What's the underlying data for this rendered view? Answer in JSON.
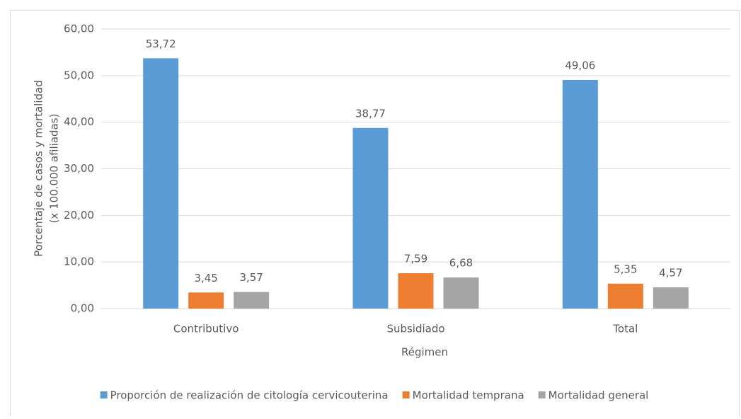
{
  "chart_data": {
    "type": "bar",
    "ylabel": [
      "Porcentaje de casos y mortalidad",
      "(x 100.000 afiliadas)"
    ],
    "xlabel": "Régimen",
    "categories": [
      "Contributivo",
      "Subsidiado",
      "Total"
    ],
    "series": [
      {
        "name": "Proporción de realización de citología cervicouterina",
        "color": "#5b9bd5",
        "values": [
          53.72,
          38.77,
          49.06
        ],
        "value_labels": [
          "53,72",
          "38,77",
          "49,06"
        ]
      },
      {
        "name": "Mortalidad temprana",
        "color": "#ed7d31",
        "values": [
          3.45,
          7.59,
          5.35
        ],
        "value_labels": [
          "3,45",
          "7,59",
          "5,35"
        ]
      },
      {
        "name": "Mortalidad general",
        "color": "#a5a5a5",
        "values": [
          3.57,
          6.68,
          4.57
        ],
        "value_labels": [
          "3,57",
          "6,68",
          "4,57"
        ]
      }
    ],
    "ylim": [
      0,
      60
    ],
    "yticks": [
      {
        "value": 0,
        "label": "0,00"
      },
      {
        "value": 10,
        "label": "10,00"
      },
      {
        "value": 20,
        "label": "20,00"
      },
      {
        "value": 30,
        "label": "30,00"
      },
      {
        "value": 40,
        "label": "40,00"
      },
      {
        "value": 50,
        "label": "50,00"
      },
      {
        "value": 60,
        "label": "60,00"
      }
    ],
    "grid": true,
    "legend": "bottom"
  }
}
